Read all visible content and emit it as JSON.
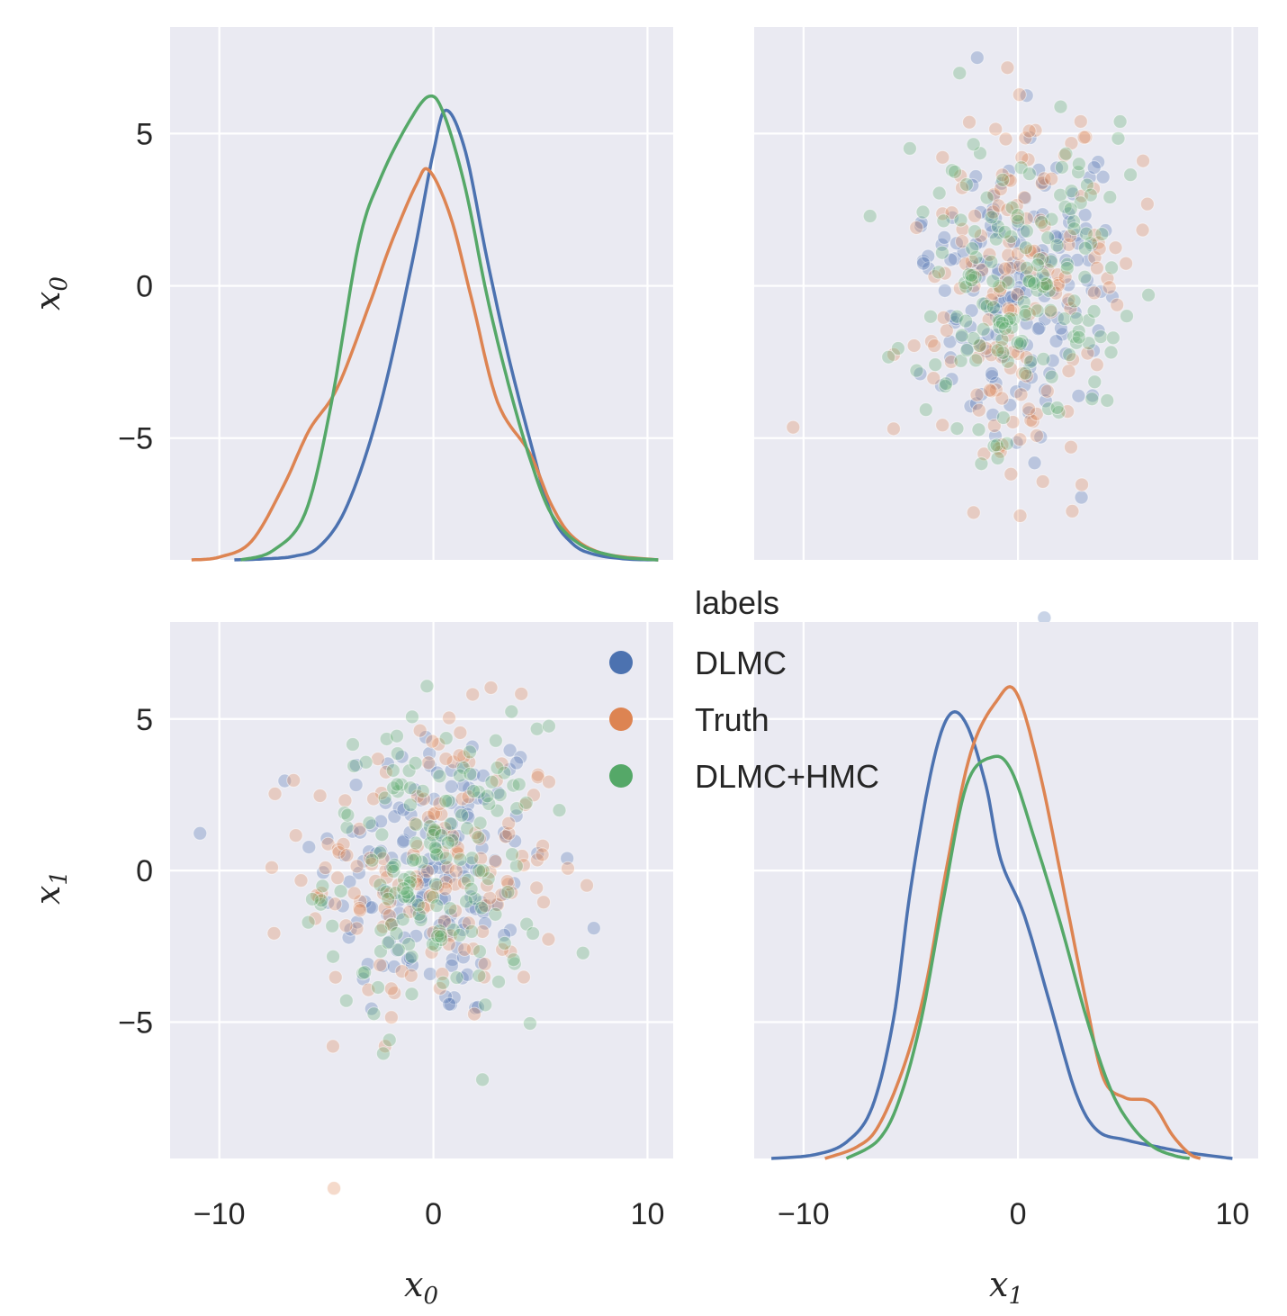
{
  "chart_data": {
    "type": "scatter",
    "kind": "pairplot",
    "variables": [
      "x0",
      "x1"
    ],
    "axis_label_base": "x",
    "axis_label_subscripts": [
      "0",
      "1"
    ],
    "xlim": [
      -12.3,
      11.2
    ],
    "ylim_x0": [
      -9.0,
      8.5
    ],
    "ylim_x1": [
      -9.5,
      8.2
    ],
    "xticks": [
      -10,
      0,
      10
    ],
    "yticks": [
      -5,
      0,
      5
    ],
    "xtick_labels": [
      "−10",
      "0",
      "10"
    ],
    "ytick_labels": [
      "−5",
      "0",
      "5"
    ],
    "grid": true,
    "diag_kind": "kde",
    "offdiag_kind": "scatter",
    "point_alpha": 0.3,
    "legend": {
      "title": "labels",
      "placement": "center-right"
    },
    "series": [
      {
        "name": "DLMC",
        "color": "#4c72b0",
        "kde_x0": [
          [
            -9.3,
            0.0
          ],
          [
            -8.0,
            0.002
          ],
          [
            -6.5,
            0.008
          ],
          [
            -5.3,
            0.03
          ],
          [
            -4.0,
            0.12
          ],
          [
            -2.5,
            0.33
          ],
          [
            -1.0,
            0.64
          ],
          [
            0.0,
            0.88
          ],
          [
            0.6,
            0.97
          ],
          [
            1.5,
            0.88
          ],
          [
            2.5,
            0.65
          ],
          [
            3.5,
            0.44
          ],
          [
            4.5,
            0.26
          ],
          [
            5.5,
            0.1
          ],
          [
            6.5,
            0.035
          ],
          [
            7.5,
            0.012
          ],
          [
            9.0,
            0.002
          ],
          [
            10.5,
            0.0
          ]
        ],
        "kde_x1": [
          [
            -11.5,
            0.0
          ],
          [
            -9.5,
            0.008
          ],
          [
            -8.0,
            0.035
          ],
          [
            -6.8,
            0.11
          ],
          [
            -5.8,
            0.3
          ],
          [
            -5.0,
            0.58
          ],
          [
            -4.0,
            0.84
          ],
          [
            -3.2,
            0.95
          ],
          [
            -2.4,
            0.93
          ],
          [
            -1.5,
            0.8
          ],
          [
            -0.8,
            0.64
          ],
          [
            0.3,
            0.52
          ],
          [
            1.5,
            0.33
          ],
          [
            2.7,
            0.14
          ],
          [
            3.7,
            0.06
          ],
          [
            5.0,
            0.04
          ],
          [
            6.5,
            0.025
          ],
          [
            8.0,
            0.012
          ],
          [
            10.0,
            0.0
          ]
        ]
      },
      {
        "name": "Truth",
        "color": "#dd8452",
        "kde_x0": [
          [
            -11.3,
            0.0
          ],
          [
            -10.0,
            0.006
          ],
          [
            -8.5,
            0.04
          ],
          [
            -7.0,
            0.16
          ],
          [
            -5.8,
            0.28
          ],
          [
            -4.5,
            0.37
          ],
          [
            -3.0,
            0.55
          ],
          [
            -2.0,
            0.68
          ],
          [
            -0.8,
            0.81
          ],
          [
            -0.2,
            0.84
          ],
          [
            0.8,
            0.74
          ],
          [
            1.8,
            0.56
          ],
          [
            3.0,
            0.34
          ],
          [
            4.5,
            0.23
          ],
          [
            5.5,
            0.12
          ],
          [
            6.5,
            0.05
          ],
          [
            8.0,
            0.013
          ],
          [
            10.5,
            0.0
          ]
        ],
        "kde_x1": [
          [
            -9.0,
            0.0
          ],
          [
            -7.5,
            0.025
          ],
          [
            -6.5,
            0.07
          ],
          [
            -5.3,
            0.2
          ],
          [
            -4.3,
            0.37
          ],
          [
            -3.3,
            0.63
          ],
          [
            -2.2,
            0.87
          ],
          [
            -1.0,
            0.98
          ],
          [
            -0.1,
            1.0
          ],
          [
            1.0,
            0.83
          ],
          [
            2.2,
            0.56
          ],
          [
            3.2,
            0.33
          ],
          [
            4.0,
            0.17
          ],
          [
            5.0,
            0.13
          ],
          [
            6.2,
            0.12
          ],
          [
            7.2,
            0.05
          ],
          [
            8.0,
            0.01
          ],
          [
            8.5,
            0.0
          ]
        ]
      },
      {
        "name": "DLMC+HMC",
        "color": "#55a868",
        "kde_x0": [
          [
            -9.0,
            0.0
          ],
          [
            -7.5,
            0.02
          ],
          [
            -6.0,
            0.1
          ],
          [
            -4.8,
            0.33
          ],
          [
            -3.5,
            0.68
          ],
          [
            -2.5,
            0.82
          ],
          [
            -1.2,
            0.94
          ],
          [
            -0.2,
            1.0
          ],
          [
            0.5,
            0.96
          ],
          [
            1.5,
            0.8
          ],
          [
            2.5,
            0.57
          ],
          [
            3.5,
            0.38
          ],
          [
            4.5,
            0.22
          ],
          [
            5.5,
            0.1
          ],
          [
            6.8,
            0.035
          ],
          [
            8.5,
            0.008
          ],
          [
            10.5,
            0.0
          ]
        ],
        "kde_x1": [
          [
            -8.0,
            0.0
          ],
          [
            -6.5,
            0.04
          ],
          [
            -5.5,
            0.13
          ],
          [
            -4.5,
            0.3
          ],
          [
            -3.5,
            0.55
          ],
          [
            -2.4,
            0.8
          ],
          [
            -1.2,
            0.86
          ],
          [
            -0.3,
            0.83
          ],
          [
            0.8,
            0.68
          ],
          [
            2.0,
            0.5
          ],
          [
            3.2,
            0.3
          ],
          [
            4.3,
            0.15
          ],
          [
            5.3,
            0.07
          ],
          [
            6.3,
            0.025
          ],
          [
            7.3,
            0.006
          ],
          [
            8.0,
            0.0
          ]
        ]
      }
    ],
    "scatter_spread": {
      "DLMC": [
        2.7,
        2.6
      ],
      "Truth": [
        3.0,
        2.5
      ],
      "DLMC+HMC": [
        2.5,
        2.4
      ]
    },
    "scatter_n": 160
  }
}
